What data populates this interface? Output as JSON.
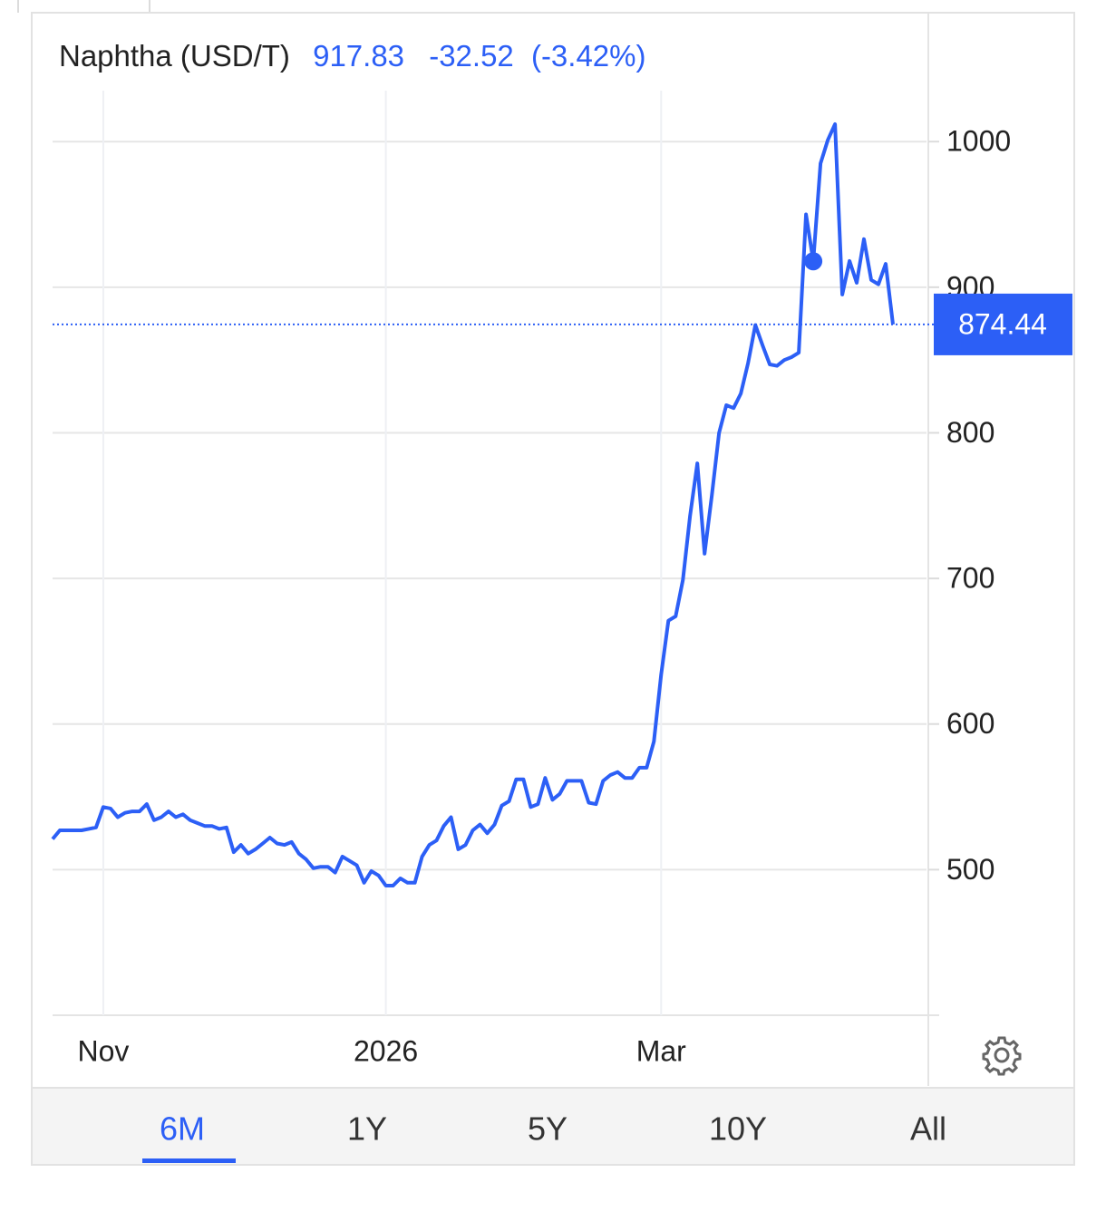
{
  "chart_data": {
    "type": "line",
    "series": [
      {
        "name": "Naphtha (USD/T)",
        "color": "#2c5ff6",
        "values": [
          521,
          527,
          527,
          527,
          527,
          528,
          529,
          543,
          542,
          536,
          539,
          540,
          540,
          545,
          534,
          536,
          540,
          536,
          538,
          534,
          532,
          530,
          530,
          528,
          529,
          512,
          517,
          511,
          514,
          518,
          522,
          518,
          517,
          519,
          511,
          507,
          501,
          502,
          502,
          498,
          509,
          506,
          503,
          491,
          499,
          496,
          489,
          489,
          494,
          491,
          491,
          509,
          517,
          520,
          530,
          536,
          514,
          517,
          527,
          531,
          525,
          531,
          544,
          547,
          562,
          562,
          543,
          545,
          563,
          548,
          552,
          561,
          561,
          561,
          546,
          545,
          561,
          565,
          567,
          563,
          563,
          570,
          570,
          588,
          634,
          671,
          674,
          699,
          743,
          779,
          717,
          757,
          800,
          819,
          817,
          827,
          848,
          874,
          860,
          847,
          846,
          850,
          852,
          855,
          950,
          917.83,
          985,
          1001,
          1012,
          895,
          918,
          903,
          933,
          905,
          902,
          916,
          874.44
        ]
      }
    ],
    "categories": [
      null,
      null,
      null,
      null,
      null,
      null,
      null,
      "Nov",
      null,
      null,
      null,
      null,
      null,
      null,
      null,
      null,
      null,
      null,
      null,
      null,
      null,
      null,
      null,
      null,
      null,
      null,
      null,
      null,
      null,
      null,
      null,
      null,
      null,
      null,
      null,
      null,
      null,
      null,
      null,
      null,
      null,
      null,
      null,
      null,
      null,
      null,
      "2026",
      null,
      null,
      null,
      null,
      null,
      null,
      null,
      null,
      null,
      null,
      null,
      null,
      null,
      null,
      null,
      null,
      null,
      null,
      null,
      null,
      null,
      null,
      null,
      null,
      null,
      null,
      null,
      null,
      null,
      null,
      null,
      null,
      null,
      null,
      null,
      null,
      null,
      "Mar",
      null,
      null,
      null,
      null,
      null,
      null,
      null,
      null,
      null,
      null,
      null,
      null,
      null,
      null,
      null,
      null,
      null,
      null,
      null,
      null,
      null,
      null,
      null,
      null,
      null,
      null,
      null,
      null,
      null,
      null,
      null,
      null
    ],
    "ylim": [
      400,
      1035
    ],
    "yticks": [
      500,
      600,
      700,
      800,
      900,
      1000
    ],
    "grid": true,
    "highlighted_point": 105,
    "header": {
      "price": 917.83,
      "change": -32.52,
      "change_pct": "(-3.42%)"
    },
    "ranges": [
      "6M",
      "1Y",
      "5Y",
      "10Y",
      "All"
    ],
    "active_range": 0
  }
}
